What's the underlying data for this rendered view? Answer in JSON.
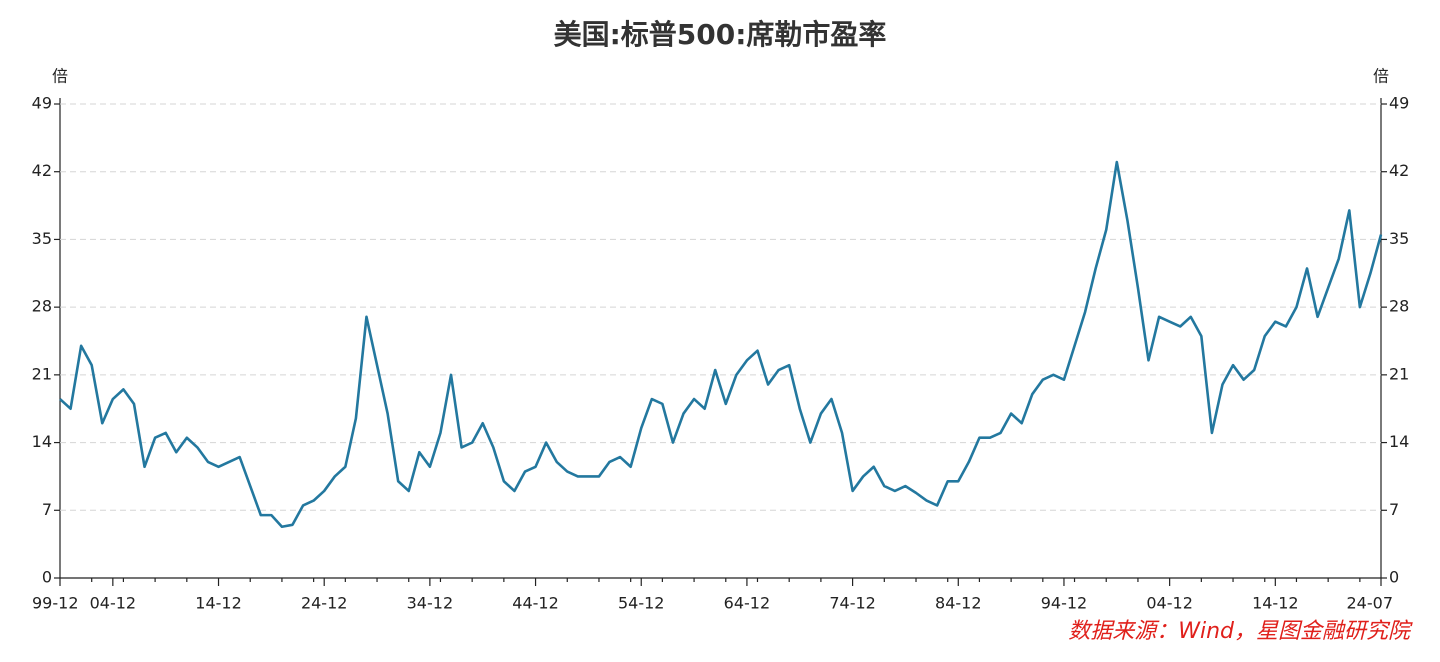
{
  "chart_data": {
    "type": "line",
    "title": "美国:标普500:席勒市盈率",
    "ylabel": "倍",
    "y2label": "倍",
    "categories": [
      "99-12",
      null,
      null,
      null,
      null,
      "04-12",
      null,
      null,
      null,
      null,
      null,
      null,
      null,
      null,
      null,
      "14-12",
      null,
      null,
      null,
      null,
      null,
      null,
      null,
      null,
      null,
      "24-12",
      null,
      null,
      null,
      null,
      null,
      null,
      null,
      null,
      null,
      "34-12",
      null,
      null,
      null,
      null,
      null,
      null,
      null,
      null,
      null,
      "44-12",
      null,
      null,
      null,
      null,
      null,
      null,
      null,
      null,
      null,
      "54-12",
      null,
      null,
      null,
      null,
      null,
      null,
      null,
      null,
      null,
      "64-12",
      null,
      null,
      null,
      null,
      null,
      null,
      null,
      null,
      null,
      "74-12",
      null,
      null,
      null,
      null,
      null,
      null,
      null,
      null,
      null,
      "84-12",
      null,
      null,
      null,
      null,
      null,
      null,
      null,
      null,
      null,
      "94-12",
      null,
      null,
      null,
      null,
      null,
      null,
      null,
      null,
      null,
      "04-12",
      null,
      null,
      null,
      null,
      null,
      null,
      null,
      null,
      null,
      "14-12",
      null,
      null,
      null,
      null,
      null,
      null,
      null,
      null,
      null,
      "24-07"
    ],
    "values": [
      18.5,
      17.5,
      24,
      22,
      16,
      18.5,
      19.5,
      18,
      11.5,
      14.5,
      15,
      13,
      14.5,
      13.5,
      12,
      11.5,
      12,
      12.5,
      9.5,
      6.5,
      6.5,
      5.3,
      5.5,
      7.5,
      8,
      9,
      10.5,
      11.5,
      16.5,
      27,
      22,
      17,
      10,
      9,
      13,
      11.5,
      15,
      21,
      13.5,
      14,
      16,
      13.5,
      10,
      9,
      11,
      11.5,
      14,
      12,
      11,
      10.5,
      10.5,
      10.5,
      12,
      12.5,
      11.5,
      15.5,
      18.5,
      18,
      14,
      17,
      18.5,
      17.5,
      21.5,
      18,
      21,
      22.5,
      23.5,
      20,
      21.5,
      22,
      17.5,
      14,
      17,
      18.5,
      15,
      9,
      10.5,
      11.5,
      9.5,
      9,
      9.5,
      8.8,
      8,
      7.5,
      10,
      10,
      12,
      14.5,
      14.5,
      15,
      17,
      16,
      19,
      20.5,
      21,
      20.5,
      24,
      27.5,
      32,
      36,
      43,
      37,
      30,
      22.5,
      27,
      26.5,
      26,
      27,
      25,
      15,
      20,
      22,
      20.5,
      21.5,
      25,
      26.5,
      26,
      28,
      32,
      27,
      30,
      33,
      38,
      28,
      31.5,
      35.5
    ],
    "color": "#23789f",
    "ylim": [
      0,
      49
    ],
    "yticks": [
      0,
      7,
      14,
      21,
      28,
      35,
      42,
      49
    ],
    "y2lim": [
      0,
      49
    ],
    "y2ticks": [
      0,
      7,
      14,
      21,
      28,
      35,
      42,
      49
    ],
    "grid": true,
    "source": "数据来源：Wind，星图金融研究院"
  }
}
